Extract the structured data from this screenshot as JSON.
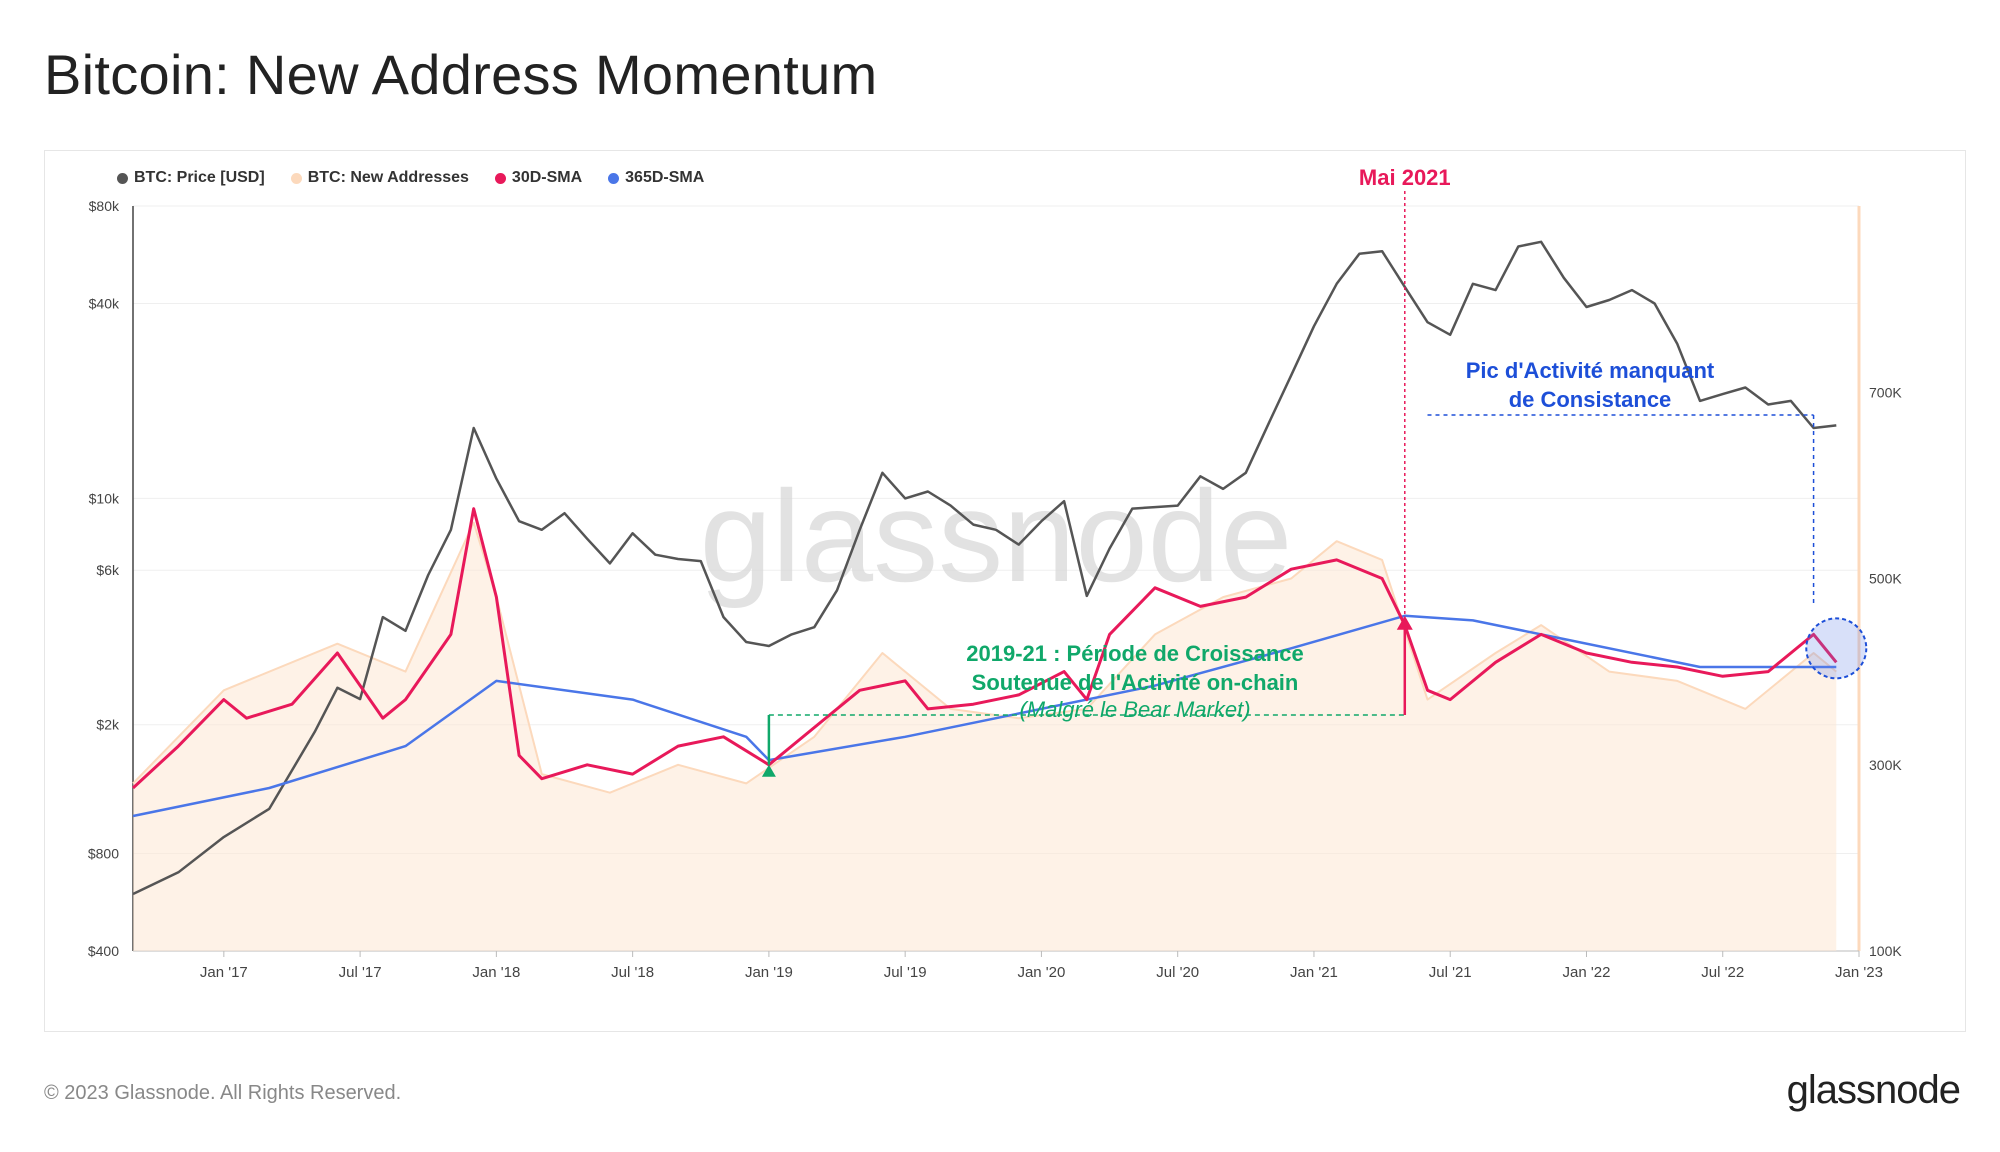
{
  "title": "Bitcoin: New Address Momentum",
  "legend": [
    {
      "label": "BTC: Price [USD]",
      "color": "#555555"
    },
    {
      "label": "BTC: New Addresses",
      "color": "#fcd9bc"
    },
    {
      "label": "30D-SMA",
      "color": "#e8195a"
    },
    {
      "label": "365D-SMA",
      "color": "#4a76e8"
    }
  ],
  "watermark": "glassnode",
  "footer": {
    "copyright": "© 2023 Glassnode. All Rights Reserved.",
    "logo": "glassnode"
  },
  "chart_data": {
    "type": "line",
    "x_range": [
      "2016-09",
      "2023-01"
    ],
    "x_ticks": [
      "Jan '17",
      "Jul '17",
      "Jan '18",
      "Jul '18",
      "Jan '19",
      "Jul '19",
      "Jan '20",
      "Jul '20",
      "Jan '21",
      "Jul '21",
      "Jan '22",
      "Jul '22",
      "Jan '23"
    ],
    "y_left": {
      "scale": "log",
      "ticks": [
        "$400",
        "$800",
        "$2k",
        "$6k",
        "$10k",
        "$40k",
        "$80k"
      ],
      "range": [
        400,
        80000
      ]
    },
    "y_right": {
      "scale": "linear",
      "ticks": [
        "100K",
        "300K",
        "500K",
        "700K"
      ],
      "range": [
        100000,
        900000
      ]
    },
    "series": [
      {
        "name": "BTC: Price [USD]",
        "axis": "left",
        "color": "#555555",
        "points": [
          [
            "2016-09",
            600
          ],
          [
            "2016-11",
            700
          ],
          [
            "2017-01",
            900
          ],
          [
            "2017-03",
            1100
          ],
          [
            "2017-05",
            1900
          ],
          [
            "2017-06",
            2600
          ],
          [
            "2017-07",
            2400
          ],
          [
            "2017-08",
            4300
          ],
          [
            "2017-09",
            3900
          ],
          [
            "2017-10",
            5800
          ],
          [
            "2017-11",
            8000
          ],
          [
            "2017-12",
            16500
          ],
          [
            "2018-01",
            11500
          ],
          [
            "2018-02",
            8500
          ],
          [
            "2018-03",
            8000
          ],
          [
            "2018-04",
            9000
          ],
          [
            "2018-05",
            7500
          ],
          [
            "2018-06",
            6300
          ],
          [
            "2018-07",
            7800
          ],
          [
            "2018-08",
            6700
          ],
          [
            "2018-09",
            6500
          ],
          [
            "2018-10",
            6400
          ],
          [
            "2018-11",
            4300
          ],
          [
            "2018-12",
            3600
          ],
          [
            "2019-01",
            3500
          ],
          [
            "2019-02",
            3800
          ],
          [
            "2019-03",
            4000
          ],
          [
            "2019-04",
            5200
          ],
          [
            "2019-05",
            8000
          ],
          [
            "2019-06",
            12000
          ],
          [
            "2019-07",
            10000
          ],
          [
            "2019-08",
            10500
          ],
          [
            "2019-09",
            9500
          ],
          [
            "2019-10",
            8300
          ],
          [
            "2019-11",
            8000
          ],
          [
            "2019-12",
            7200
          ],
          [
            "2020-01",
            8500
          ],
          [
            "2020-02",
            9800
          ],
          [
            "2020-03",
            5000
          ],
          [
            "2020-04",
            7000
          ],
          [
            "2020-05",
            9300
          ],
          [
            "2020-06",
            9400
          ],
          [
            "2020-07",
            9500
          ],
          [
            "2020-08",
            11700
          ],
          [
            "2020-09",
            10700
          ],
          [
            "2020-10",
            12000
          ],
          [
            "2020-11",
            17000
          ],
          [
            "2020-12",
            24000
          ],
          [
            "2021-01",
            34000
          ],
          [
            "2021-02",
            46000
          ],
          [
            "2021-03",
            57000
          ],
          [
            "2021-04",
            58000
          ],
          [
            "2021-05",
            45000
          ],
          [
            "2021-06",
            35000
          ],
          [
            "2021-07",
            32000
          ],
          [
            "2021-08",
            46000
          ],
          [
            "2021-09",
            44000
          ],
          [
            "2021-10",
            60000
          ],
          [
            "2021-11",
            62000
          ],
          [
            "2021-12",
            48000
          ],
          [
            "2022-01",
            39000
          ],
          [
            "2022-02",
            41000
          ],
          [
            "2022-03",
            44000
          ],
          [
            "2022-04",
            40000
          ],
          [
            "2022-05",
            30000
          ],
          [
            "2022-06",
            20000
          ],
          [
            "2022-07",
            21000
          ],
          [
            "2022-08",
            22000
          ],
          [
            "2022-09",
            19500
          ],
          [
            "2022-10",
            20000
          ],
          [
            "2022-11",
            16500
          ],
          [
            "2022-12",
            16800
          ]
        ]
      },
      {
        "name": "BTC: New Addresses",
        "axis": "right",
        "color": "#fcd9bc",
        "points": [
          [
            "2016-09",
            280000
          ],
          [
            "2017-01",
            380000
          ],
          [
            "2017-06",
            430000
          ],
          [
            "2017-09",
            400000
          ],
          [
            "2017-12",
            560000
          ],
          [
            "2018-01",
            480000
          ],
          [
            "2018-03",
            290000
          ],
          [
            "2018-06",
            270000
          ],
          [
            "2018-09",
            300000
          ],
          [
            "2018-12",
            280000
          ],
          [
            "2019-03",
            330000
          ],
          [
            "2019-06",
            420000
          ],
          [
            "2019-09",
            360000
          ],
          [
            "2019-12",
            350000
          ],
          [
            "2020-03",
            360000
          ],
          [
            "2020-06",
            440000
          ],
          [
            "2020-09",
            480000
          ],
          [
            "2020-12",
            500000
          ],
          [
            "2021-02",
            540000
          ],
          [
            "2021-04",
            520000
          ],
          [
            "2021-06",
            370000
          ],
          [
            "2021-09",
            420000
          ],
          [
            "2021-11",
            450000
          ],
          [
            "2022-02",
            400000
          ],
          [
            "2022-05",
            390000
          ],
          [
            "2022-08",
            360000
          ],
          [
            "2022-11",
            420000
          ],
          [
            "2022-12",
            400000
          ]
        ]
      },
      {
        "name": "30D-SMA",
        "axis": "right",
        "color": "#e8195a",
        "points": [
          [
            "2016-09",
            275000
          ],
          [
            "2016-11",
            320000
          ],
          [
            "2017-01",
            370000
          ],
          [
            "2017-02",
            350000
          ],
          [
            "2017-04",
            365000
          ],
          [
            "2017-06",
            420000
          ],
          [
            "2017-08",
            350000
          ],
          [
            "2017-09",
            370000
          ],
          [
            "2017-11",
            440000
          ],
          [
            "2017-12",
            575000
          ],
          [
            "2018-01",
            480000
          ],
          [
            "2018-02",
            310000
          ],
          [
            "2018-03",
            285000
          ],
          [
            "2018-05",
            300000
          ],
          [
            "2018-07",
            290000
          ],
          [
            "2018-09",
            320000
          ],
          [
            "2018-11",
            330000
          ],
          [
            "2019-01",
            300000
          ],
          [
            "2019-03",
            340000
          ],
          [
            "2019-05",
            380000
          ],
          [
            "2019-07",
            390000
          ],
          [
            "2019-08",
            360000
          ],
          [
            "2019-10",
            365000
          ],
          [
            "2019-12",
            375000
          ],
          [
            "2020-02",
            400000
          ],
          [
            "2020-03",
            370000
          ],
          [
            "2020-04",
            440000
          ],
          [
            "2020-06",
            490000
          ],
          [
            "2020-08",
            470000
          ],
          [
            "2020-10",
            480000
          ],
          [
            "2020-12",
            510000
          ],
          [
            "2021-02",
            520000
          ],
          [
            "2021-04",
            500000
          ],
          [
            "2021-05",
            450000
          ],
          [
            "2021-06",
            380000
          ],
          [
            "2021-07",
            370000
          ],
          [
            "2021-09",
            410000
          ],
          [
            "2021-11",
            440000
          ],
          [
            "2022-01",
            420000
          ],
          [
            "2022-03",
            410000
          ],
          [
            "2022-05",
            405000
          ],
          [
            "2022-07",
            395000
          ],
          [
            "2022-09",
            400000
          ],
          [
            "2022-11",
            440000
          ],
          [
            "2022-12",
            410000
          ]
        ]
      },
      {
        "name": "365D-SMA",
        "axis": "right",
        "color": "#4a76e8",
        "points": [
          [
            "2016-09",
            245000
          ],
          [
            "2017-03",
            275000
          ],
          [
            "2017-09",
            320000
          ],
          [
            "2018-01",
            390000
          ],
          [
            "2018-07",
            370000
          ],
          [
            "2018-12",
            330000
          ],
          [
            "2019-01",
            305000
          ],
          [
            "2019-07",
            330000
          ],
          [
            "2019-12",
            355000
          ],
          [
            "2020-06",
            385000
          ],
          [
            "2020-12",
            425000
          ],
          [
            "2021-05",
            460000
          ],
          [
            "2021-08",
            455000
          ],
          [
            "2021-12",
            435000
          ],
          [
            "2022-06",
            405000
          ],
          [
            "2022-12",
            405000
          ]
        ]
      }
    ],
    "annotations": [
      {
        "text": "Mai 2021",
        "color": "#e8195a"
      },
      {
        "text": "Pic d'Activité manquant",
        "color": "#1d4fd8"
      },
      {
        "text": "de Consistance",
        "color": "#1d4fd8"
      },
      {
        "text": "2019-21 : Période de Croissance",
        "color": "#10a86a"
      },
      {
        "text": "Soutenue de l'Activité on-chain",
        "color": "#10a86a"
      },
      {
        "text": "(Malgré le Bear Market)",
        "color": "#10a86a"
      }
    ]
  }
}
